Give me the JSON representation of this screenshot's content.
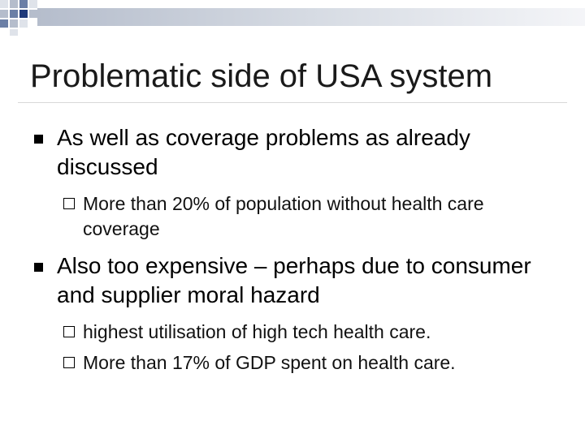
{
  "slide": {
    "title": "Problematic side of USA system",
    "bullets": [
      {
        "text": "As well as coverage problems as already discussed",
        "subs": [
          "More than 20% of population without health care coverage"
        ]
      },
      {
        "text": "Also  too expensive – perhaps due to consumer and supplier moral hazard",
        "subs": [
          "highest utilisation of high tech health care.",
          "More than 17% of GDP spent on health care."
        ]
      }
    ]
  },
  "theme": {
    "decoration_colors": [
      "#203a7a",
      "#6b7fa6",
      "#b5bdcc",
      "#dfe3ea"
    ],
    "bullet_icon": "square-filled-bullet-icon",
    "sub_bullet_icon": "square-outline-bullet-icon"
  }
}
